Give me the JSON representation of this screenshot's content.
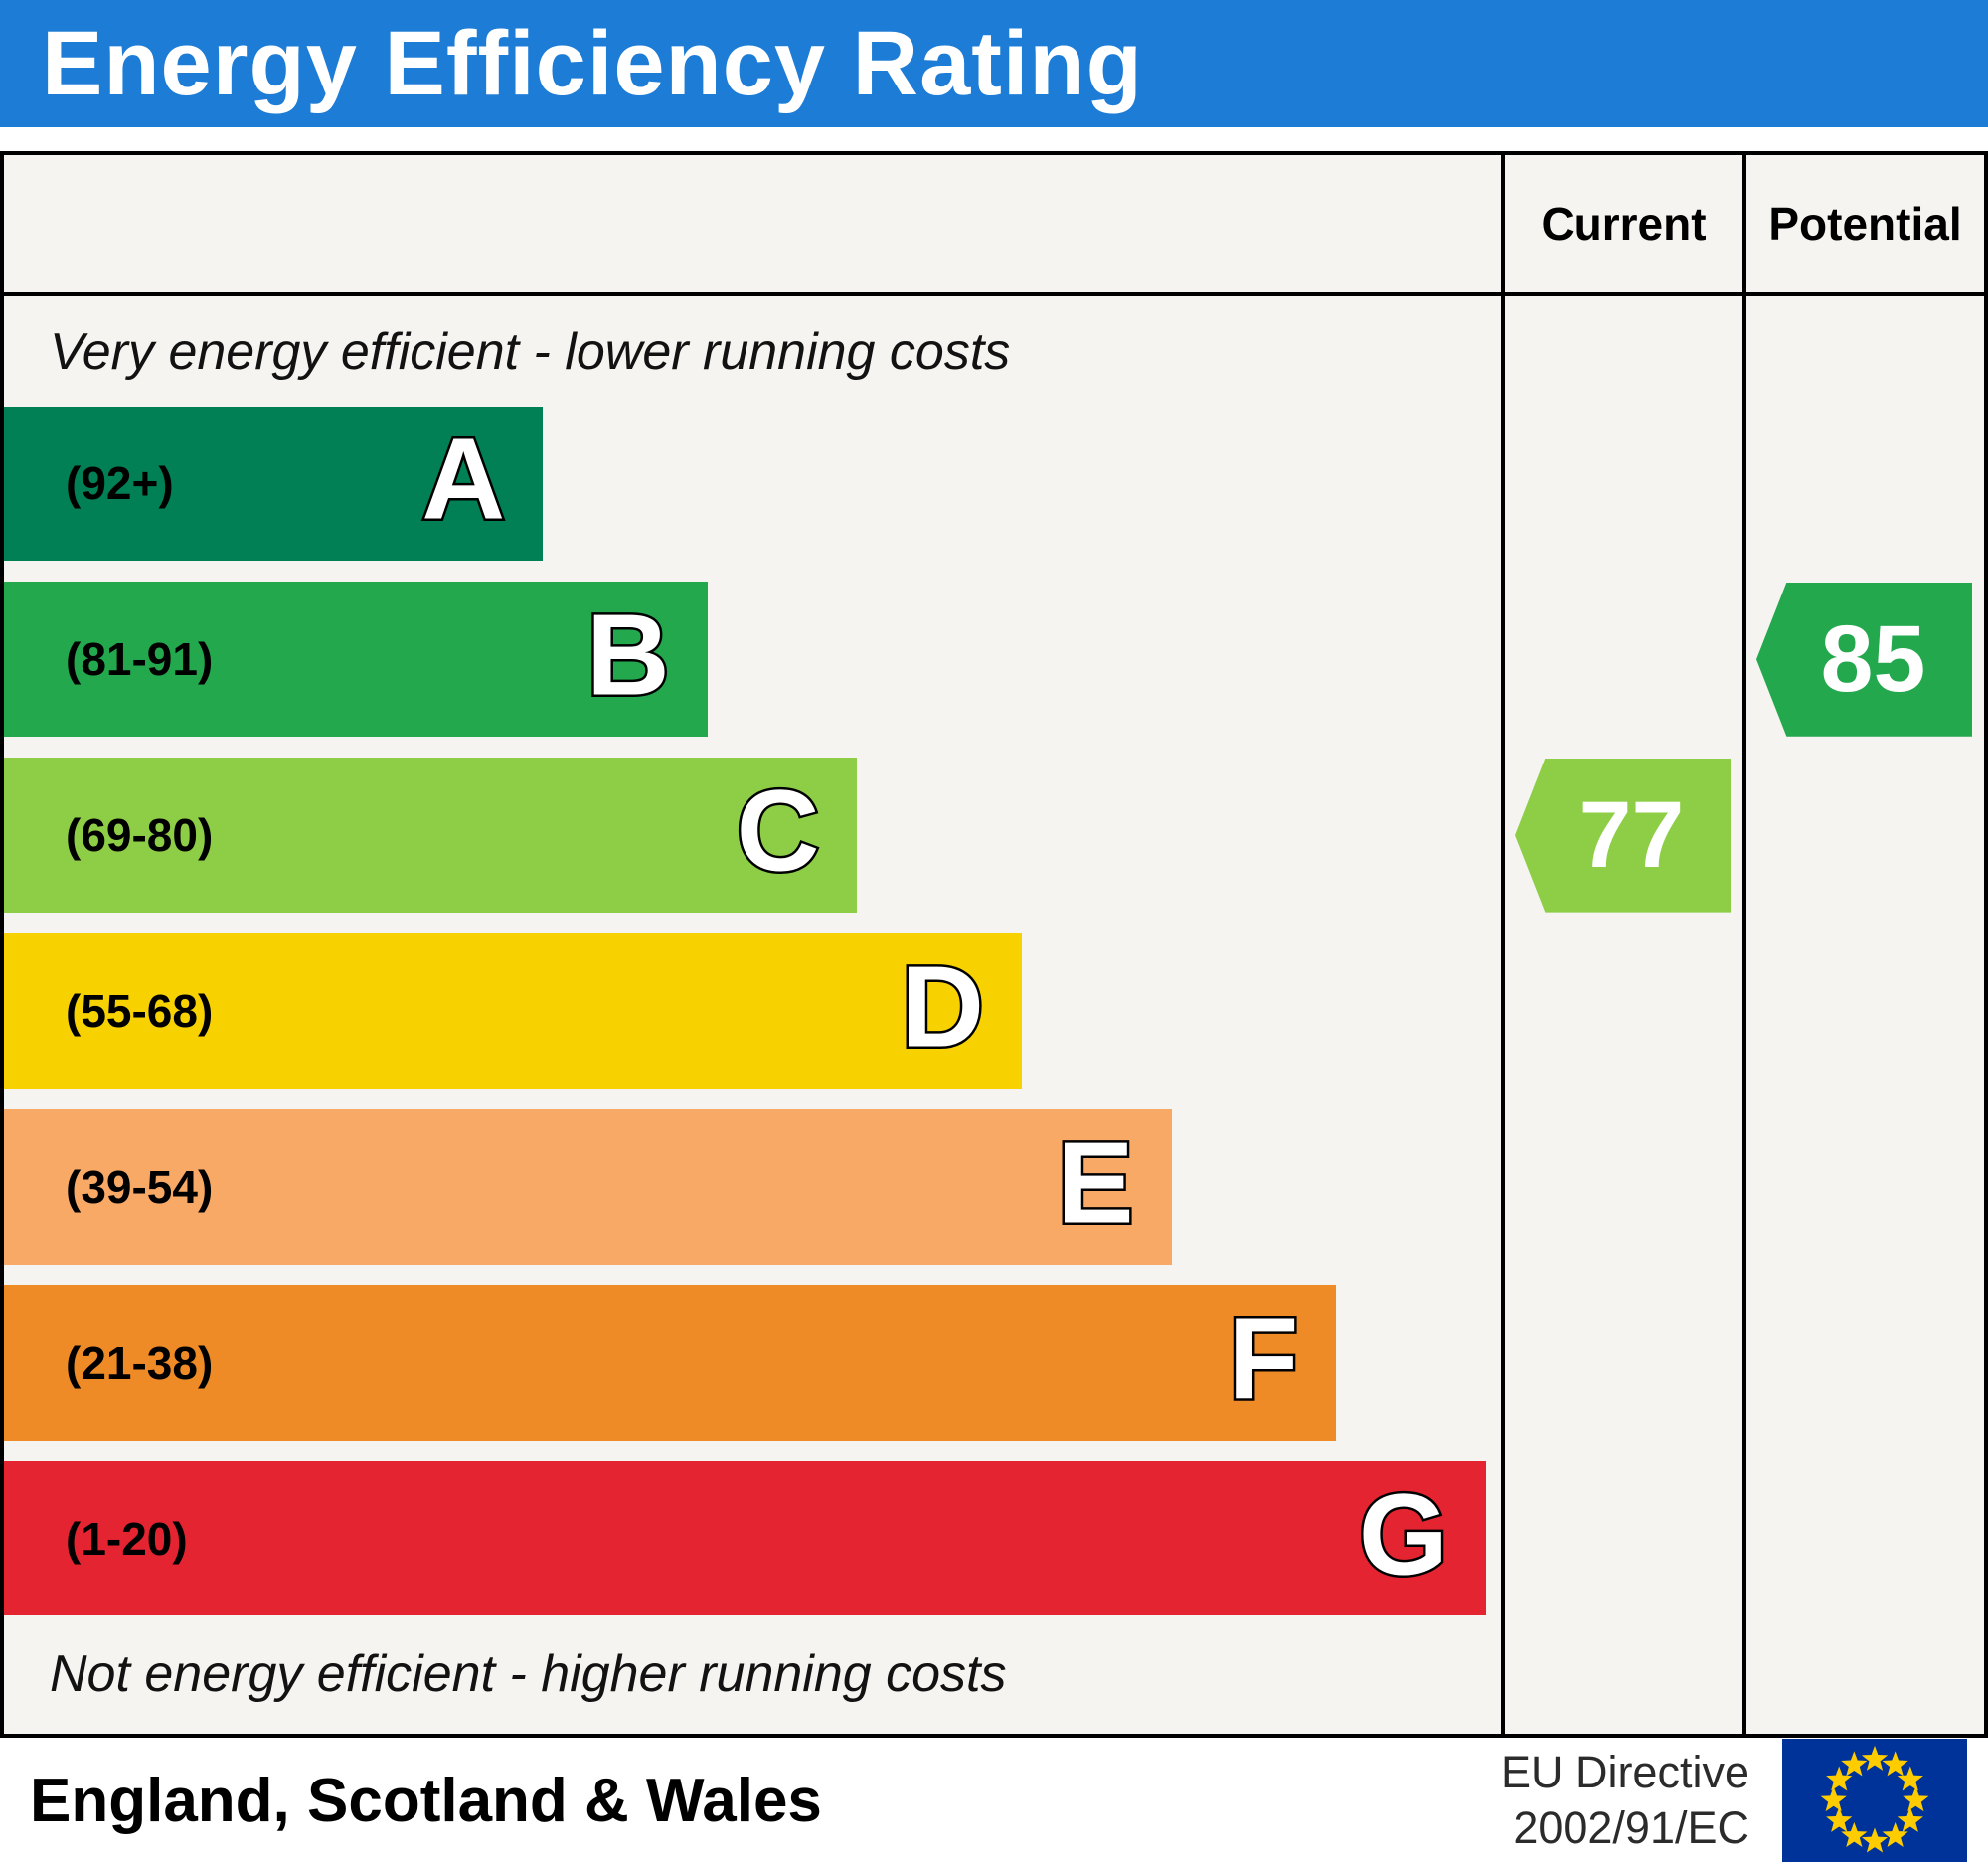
{
  "title": "Energy Efficiency Rating",
  "columns": {
    "current": "Current",
    "potential": "Potential"
  },
  "notes": {
    "top": "Very energy efficient - lower running costs",
    "bottom": "Not energy efficient - higher running costs"
  },
  "bands": [
    {
      "letter": "A",
      "range": "(92+)",
      "color": "#008054",
      "width_pct": 36
    },
    {
      "letter": "B",
      "range": "(81-91)",
      "color": "#23a84d",
      "width_pct": 47
    },
    {
      "letter": "C",
      "range": "(69-80)",
      "color": "#8dce46",
      "width_pct": 57
    },
    {
      "letter": "D",
      "range": "(55-68)",
      "color": "#f7d200",
      "width_pct": 68
    },
    {
      "letter": "E",
      "range": "(39-54)",
      "color": "#f9a966",
      "width_pct": 78
    },
    {
      "letter": "F",
      "range": "(21-38)",
      "color": "#ef8b27",
      "width_pct": 89
    },
    {
      "letter": "G",
      "range": "(1-20)",
      "color": "#e42430",
      "width_pct": 99
    }
  ],
  "current": {
    "value": "77",
    "color": "#8dce46",
    "band_index": 2
  },
  "potential": {
    "value": "85",
    "color": "#23a84d",
    "band_index": 1
  },
  "footer": {
    "region": "England, Scotland & Wales",
    "directive_line1": "EU Directive",
    "directive_line2": "2002/91/EC",
    "flag_icon": "eu-flag-icon",
    "flag_colors": {
      "field": "#003399",
      "stars": "#ffcc00"
    }
  },
  "chart_data": {
    "type": "bar",
    "title": "Energy Efficiency Rating",
    "categories": [
      "A",
      "B",
      "C",
      "D",
      "E",
      "F",
      "G"
    ],
    "band_ranges": [
      "92+",
      "81-91",
      "69-80",
      "55-68",
      "39-54",
      "21-38",
      "1-20"
    ],
    "band_colors": [
      "#008054",
      "#23a84d",
      "#8dce46",
      "#f7d200",
      "#f9a966",
      "#ef8b27",
      "#e42430"
    ],
    "band_widths_pct": [
      36,
      47,
      57,
      68,
      78,
      89,
      99
    ],
    "series": [
      {
        "name": "Current",
        "values": [
          77
        ],
        "band": "C"
      },
      {
        "name": "Potential",
        "values": [
          85
        ],
        "band": "B"
      }
    ],
    "scale": {
      "min": 1,
      "max": 100
    },
    "top_note": "Very energy efficient - lower running costs",
    "bottom_note": "Not energy efficient - higher running costs",
    "region": "England, Scotland & Wales",
    "directive": "EU Directive 2002/91/EC"
  }
}
